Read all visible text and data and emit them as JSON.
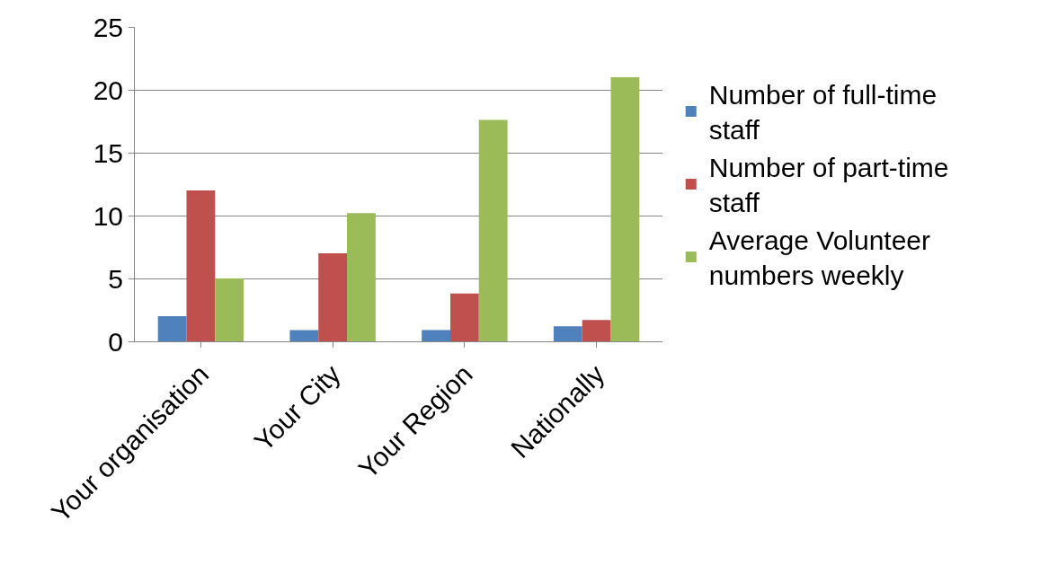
{
  "chart_data": {
    "type": "bar",
    "categories": [
      "Your organisation",
      "Your City",
      "Your Region",
      "Nationally"
    ],
    "series": [
      {
        "name": "Number of full-time staff",
        "color": "#4f81bd",
        "values": [
          2,
          0.9,
          0.9,
          1.2
        ]
      },
      {
        "name": "Number of part-time staff",
        "color": "#c0504d",
        "values": [
          12,
          7,
          3.8,
          1.7
        ]
      },
      {
        "name": "Average Volunteer numbers weekly",
        "color": "#9bbb59",
        "values": [
          5,
          10.2,
          17.6,
          21
        ]
      }
    ],
    "ylim": [
      0,
      25
    ],
    "yticks": [
      0,
      5,
      10,
      15,
      20,
      25
    ],
    "grid": "y",
    "legend": "right"
  }
}
